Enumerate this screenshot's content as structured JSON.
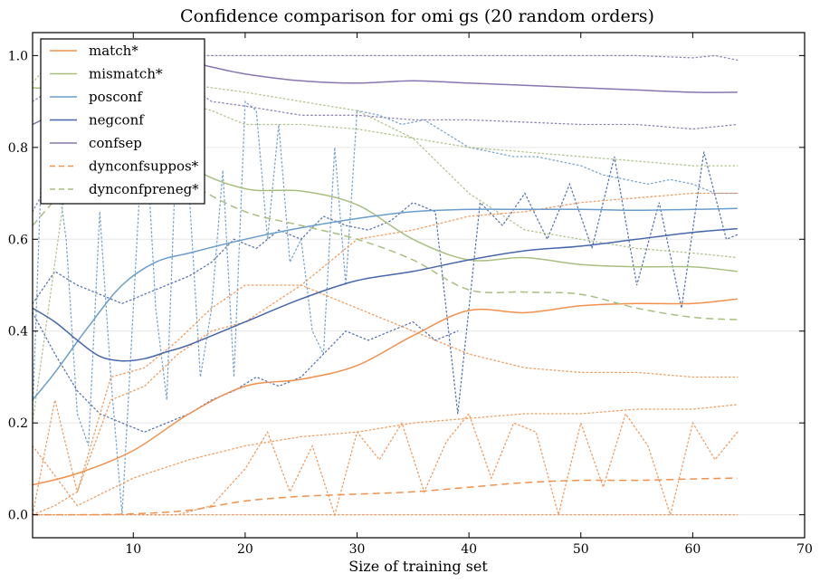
{
  "chart_data": {
    "type": "line",
    "title": "Confidence comparison for omi gs (20 random orders)",
    "xlabel": "Size of training set",
    "ylabel": "",
    "xlim": [
      1,
      70
    ],
    "ylim": [
      -0.05,
      1.05
    ],
    "xticks": [
      10,
      20,
      30,
      40,
      50,
      60,
      70
    ],
    "yticks": [
      0.0,
      0.2,
      0.4,
      0.6,
      0.8,
      1.0
    ],
    "xtick_labels": [
      "10",
      "20",
      "30",
      "40",
      "50",
      "60",
      "70"
    ],
    "ytick_labels": [
      "0.0",
      "0.2",
      "0.4",
      "0.6",
      "0.8",
      "1.0"
    ],
    "grid": "horizontal",
    "legend_position": "top-left",
    "colors": {
      "match": "#f0914e",
      "mismatch": "#a8bf7f",
      "posconf": "#6a9dcb",
      "negconf": "#4767ab",
      "confsep": "#8876b1"
    },
    "series": [
      {
        "name": "match*",
        "style": "solid",
        "color": "#f0914e",
        "x": [
          1,
          5,
          10,
          15,
          20,
          25,
          30,
          35,
          40,
          45,
          50,
          55,
          60,
          64
        ],
        "y": [
          0.065,
          0.09,
          0.14,
          0.22,
          0.28,
          0.295,
          0.325,
          0.39,
          0.445,
          0.44,
          0.455,
          0.46,
          0.46,
          0.47
        ]
      },
      {
        "name": "mismatch*",
        "style": "solid",
        "color": "#a8bf7f",
        "x": [
          1,
          5,
          10,
          15,
          20,
          25,
          30,
          35,
          40,
          45,
          50,
          55,
          60,
          64
        ],
        "y": [
          0.93,
          0.92,
          0.87,
          0.76,
          0.71,
          0.705,
          0.675,
          0.6,
          0.555,
          0.56,
          0.545,
          0.54,
          0.54,
          0.53
        ]
      },
      {
        "name": "posconf",
        "style": "solid",
        "color": "#6a9dcb",
        "x": [
          1,
          3,
          6,
          9,
          12,
          15,
          20,
          25,
          30,
          35,
          40,
          45,
          50,
          55,
          60,
          64
        ],
        "y": [
          0.25,
          0.31,
          0.41,
          0.5,
          0.55,
          0.57,
          0.6,
          0.625,
          0.645,
          0.66,
          0.665,
          0.665,
          0.665,
          0.663,
          0.665,
          0.667
        ]
      },
      {
        "name": "negconf",
        "style": "solid",
        "color": "#4767ab",
        "x": [
          1,
          3,
          5,
          7,
          9,
          11,
          13,
          15,
          20,
          25,
          30,
          35,
          40,
          45,
          50,
          55,
          60,
          64
        ],
        "y": [
          0.45,
          0.42,
          0.38,
          0.345,
          0.335,
          0.34,
          0.355,
          0.37,
          0.42,
          0.47,
          0.51,
          0.53,
          0.555,
          0.575,
          0.585,
          0.6,
          0.615,
          0.623
        ]
      },
      {
        "name": "confsep",
        "style": "solid",
        "color": "#8876b1",
        "x": [
          1,
          3,
          5,
          8,
          11,
          14,
          17,
          20,
          25,
          30,
          35,
          40,
          45,
          50,
          55,
          60,
          64
        ],
        "y": [
          0.85,
          0.875,
          0.91,
          0.95,
          0.975,
          0.99,
          0.975,
          0.96,
          0.945,
          0.94,
          0.945,
          0.94,
          0.935,
          0.93,
          0.925,
          0.92,
          0.92
        ]
      },
      {
        "name": "dynconfsuppos*",
        "style": "dashed",
        "color": "#f0914e",
        "x": [
          1,
          5,
          10,
          15,
          20,
          25,
          30,
          35,
          40,
          45,
          50,
          55,
          60,
          64
        ],
        "y": [
          0.0,
          0.0,
          0.002,
          0.01,
          0.03,
          0.04,
          0.045,
          0.05,
          0.06,
          0.07,
          0.075,
          0.075,
          0.078,
          0.08
        ]
      },
      {
        "name": "dynconfpreneg*",
        "style": "dashed",
        "color": "#a8bf7f",
        "x": [
          1,
          5,
          10,
          15,
          20,
          25,
          30,
          35,
          40,
          45,
          50,
          55,
          60,
          64
        ],
        "y": [
          0.63,
          0.73,
          0.78,
          0.72,
          0.66,
          0.63,
          0.6,
          0.555,
          0.49,
          0.485,
          0.48,
          0.45,
          0.43,
          0.425
        ]
      }
    ],
    "dotted_series": [
      {
        "color": "#8876b1",
        "x": [
          1,
          3,
          5,
          8,
          11,
          14,
          17,
          20,
          25,
          30,
          35,
          40,
          45,
          50,
          55,
          60,
          62,
          64
        ],
        "y": [
          0.9,
          0.93,
          0.96,
          1.0,
          1.0,
          1.0,
          1.0,
          1.0,
          1.0,
          1.0,
          1.0,
          1.0,
          1.0,
          1.0,
          1.0,
          0.995,
          1.0,
          0.99
        ]
      },
      {
        "color": "#8876b1",
        "x": [
          1,
          3,
          5,
          8,
          11,
          14,
          17,
          20,
          25,
          30,
          35,
          40,
          45,
          50,
          55,
          60,
          64
        ],
        "y": [
          0.66,
          0.75,
          0.82,
          0.88,
          0.93,
          0.95,
          0.9,
          0.89,
          0.87,
          0.87,
          0.86,
          0.86,
          0.855,
          0.85,
          0.85,
          0.84,
          0.85
        ]
      },
      {
        "color": "#6a9dcb",
        "x": [
          1,
          2,
          3,
          4,
          5,
          6,
          7,
          8,
          9,
          10,
          11,
          12,
          13,
          14,
          15,
          16,
          17,
          18,
          19,
          20,
          21,
          22,
          23,
          24,
          25,
          26,
          27,
          28,
          29,
          30
        ],
        "y": [
          0.22,
          0.9,
          0.78,
          0.6,
          0.22,
          0.15,
          0.66,
          0.3,
          0.0,
          0.45,
          0.9,
          0.45,
          0.25,
          0.9,
          0.7,
          0.3,
          0.45,
          0.75,
          0.3,
          0.9,
          0.88,
          0.6,
          0.85,
          0.55,
          0.6,
          0.4,
          0.35,
          0.8,
          0.5,
          0.88
        ]
      },
      {
        "color": "#6a9dcb",
        "x": [
          30,
          32,
          34,
          36,
          38,
          40,
          42,
          44,
          46,
          48,
          50,
          52,
          54,
          56,
          58,
          60,
          62,
          64
        ],
        "y": [
          0.88,
          0.87,
          0.85,
          0.86,
          0.83,
          0.8,
          0.79,
          0.78,
          0.78,
          0.77,
          0.76,
          0.74,
          0.73,
          0.72,
          0.73,
          0.72,
          0.7,
          0.7
        ]
      },
      {
        "color": "#4767ab",
        "x": [
          1,
          3,
          5,
          7,
          9,
          11,
          13,
          15,
          17,
          19,
          21,
          23,
          25,
          27,
          29,
          31,
          33,
          35,
          37,
          39,
          41,
          43,
          45,
          47,
          49,
          51,
          53,
          55,
          57,
          59,
          61,
          63,
          64
        ],
        "y": [
          0.46,
          0.53,
          0.5,
          0.48,
          0.46,
          0.48,
          0.5,
          0.52,
          0.55,
          0.6,
          0.58,
          0.62,
          0.6,
          0.65,
          0.63,
          0.62,
          0.64,
          0.68,
          0.66,
          0.22,
          0.68,
          0.63,
          0.7,
          0.6,
          0.72,
          0.58,
          0.78,
          0.5,
          0.68,
          0.45,
          0.79,
          0.6,
          0.61
        ]
      },
      {
        "color": "#4767ab",
        "x": [
          1,
          3,
          5,
          7,
          9,
          11,
          13,
          15,
          17,
          19,
          21,
          23,
          25,
          27,
          29,
          31,
          33,
          35,
          37,
          39
        ],
        "y": [
          0.44,
          0.35,
          0.27,
          0.22,
          0.2,
          0.18,
          0.2,
          0.22,
          0.25,
          0.27,
          0.3,
          0.28,
          0.3,
          0.35,
          0.4,
          0.38,
          0.4,
          0.42,
          0.38,
          0.4
        ]
      },
      {
        "color": "#a8bf7f",
        "x": [
          1,
          3,
          5,
          8,
          11,
          14,
          17,
          20,
          25,
          30,
          35,
          40,
          45,
          50,
          55,
          60,
          64
        ],
        "y": [
          0.2,
          0.55,
          0.9,
          0.85,
          0.88,
          0.9,
          0.88,
          0.85,
          0.85,
          0.84,
          0.82,
          0.8,
          0.79,
          0.78,
          0.77,
          0.76,
          0.76
        ]
      },
      {
        "color": "#a8bf7f",
        "x": [
          1,
          3,
          5,
          8,
          11,
          14,
          17,
          20,
          25,
          30,
          35,
          40,
          45,
          50,
          55,
          60,
          64
        ],
        "y": [
          0.94,
          1.0,
          0.98,
          0.96,
          0.95,
          0.94,
          0.93,
          0.92,
          0.9,
          0.88,
          0.82,
          0.7,
          0.62,
          0.6,
          0.58,
          0.57,
          0.56
        ]
      },
      {
        "color": "#f0914e",
        "x": [
          1,
          3,
          5,
          8,
          11,
          14,
          17,
          20,
          25,
          30,
          35,
          40,
          45,
          50,
          55,
          60,
          64
        ],
        "y": [
          0.0,
          0.25,
          0.05,
          0.25,
          0.28,
          0.35,
          0.4,
          0.42,
          0.5,
          0.6,
          0.62,
          0.65,
          0.66,
          0.68,
          0.69,
          0.7,
          0.7
        ]
      },
      {
        "color": "#f0914e",
        "x": [
          1,
          3,
          5,
          8,
          11,
          14,
          17,
          20,
          25,
          30,
          35,
          40,
          45,
          50,
          55,
          60,
          64
        ],
        "y": [
          0.0,
          0.02,
          0.05,
          0.3,
          0.32,
          0.38,
          0.45,
          0.5,
          0.5,
          0.45,
          0.4,
          0.35,
          0.32,
          0.31,
          0.31,
          0.3,
          0.3
        ]
      },
      {
        "color": "#f0914e",
        "x": [
          1,
          3,
          5,
          8,
          11,
          14,
          17,
          20,
          22,
          24,
          26,
          28,
          30,
          32,
          34,
          36,
          38,
          40,
          42,
          44,
          46,
          48,
          50,
          52,
          54,
          56,
          58,
          60,
          62,
          64
        ],
        "y": [
          0.0,
          0.0,
          0.0,
          0.0,
          0.0,
          0.0,
          0.02,
          0.1,
          0.18,
          0.05,
          0.15,
          0.0,
          0.18,
          0.12,
          0.2,
          0.05,
          0.16,
          0.22,
          0.08,
          0.2,
          0.18,
          0.0,
          0.2,
          0.06,
          0.22,
          0.15,
          0.0,
          0.2,
          0.12,
          0.18
        ]
      },
      {
        "color": "#f0914e",
        "x": [
          1,
          3,
          5,
          8,
          11,
          14,
          17,
          20,
          22,
          24,
          26,
          28,
          30,
          32,
          34,
          36,
          38,
          40,
          42,
          44,
          46,
          48,
          50,
          52,
          54,
          56,
          58,
          60,
          62,
          64
        ],
        "y": [
          0.0,
          0.0,
          0.0,
          0.0,
          0.0,
          0.0,
          0.0,
          0.0,
          0.0,
          0.0,
          0.0,
          0.0,
          0.0,
          0.0,
          0.0,
          0.0,
          0.0,
          0.0,
          0.0,
          0.0,
          0.0,
          0.0,
          0.0,
          0.0,
          0.0,
          0.0,
          0.0,
          0.0,
          0.0,
          0.0
        ]
      },
      {
        "color": "#f0914e",
        "x": [
          1,
          5,
          10,
          15,
          20,
          25,
          30,
          35,
          40,
          45,
          50,
          55,
          60,
          64
        ],
        "y": [
          0.15,
          0.02,
          0.08,
          0.12,
          0.15,
          0.17,
          0.18,
          0.2,
          0.21,
          0.22,
          0.22,
          0.23,
          0.23,
          0.24
        ]
      }
    ]
  }
}
